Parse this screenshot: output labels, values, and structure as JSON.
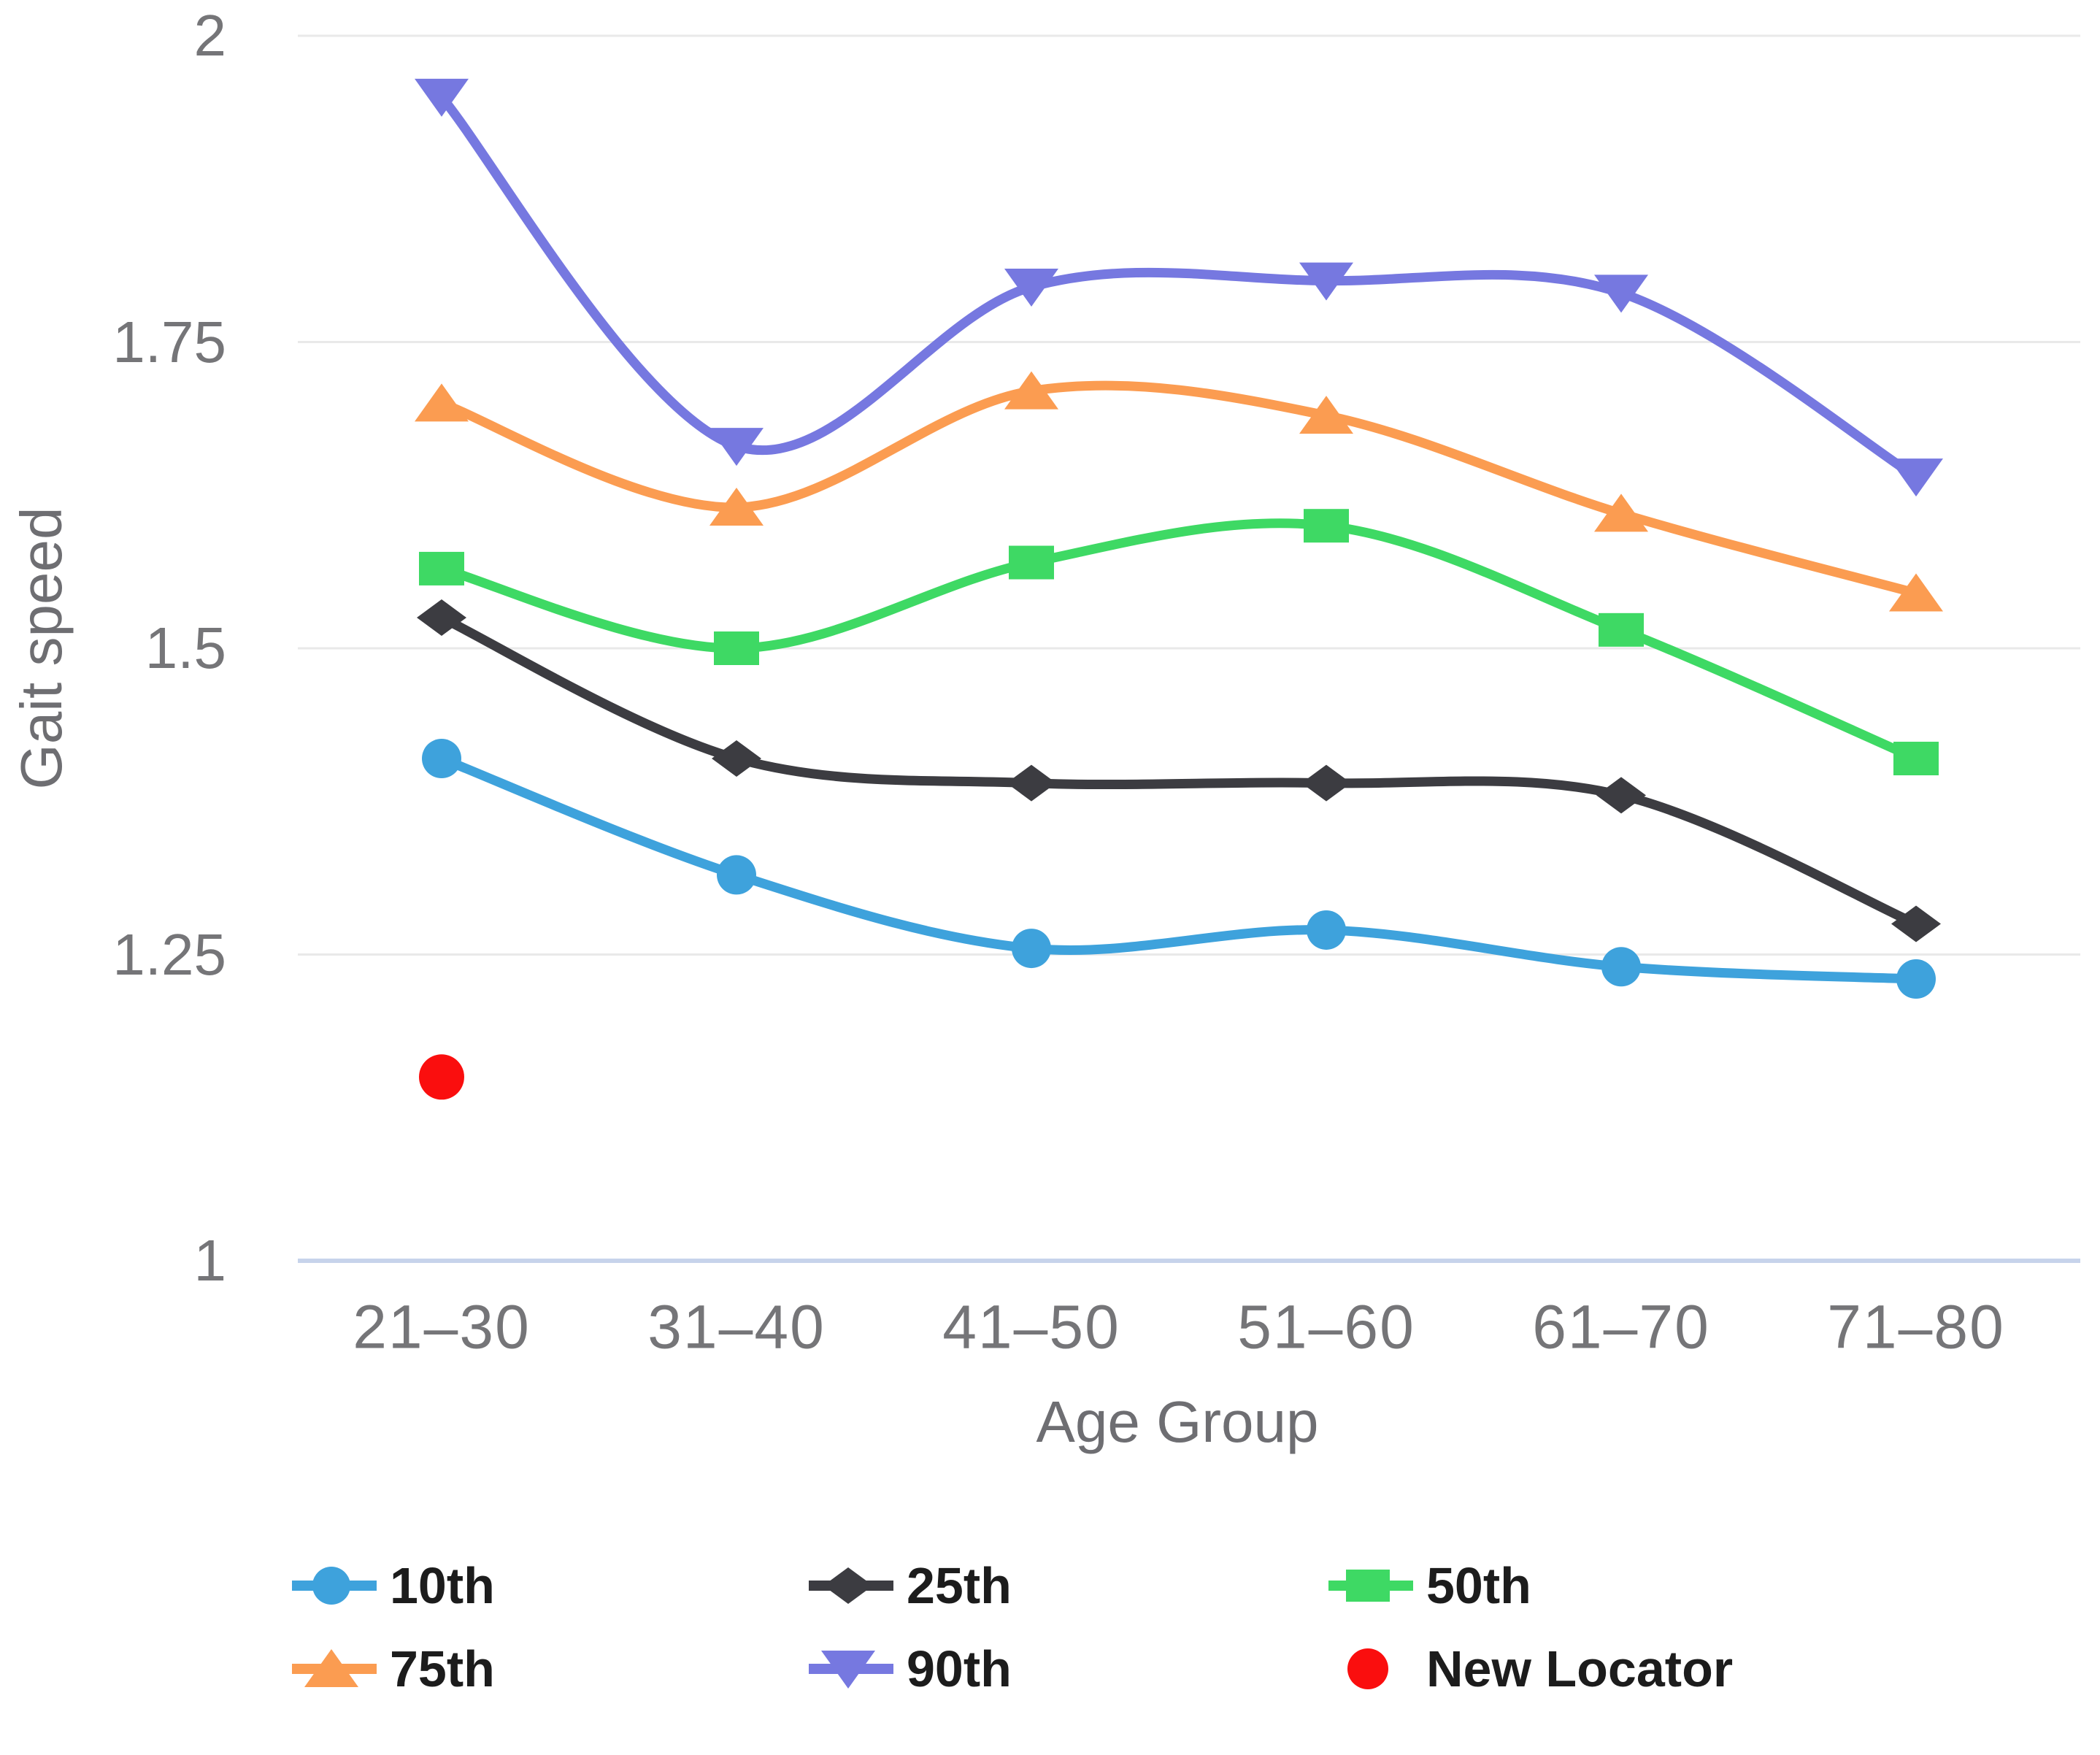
{
  "chart_data": {
    "type": "line",
    "smoothed": true,
    "xlabel": "Age Group",
    "ylabel": "Gait speed",
    "categories": [
      "21–30",
      "31–40",
      "41–50",
      "51–60",
      "61–70",
      "71–80"
    ],
    "yticks": [
      "2",
      "1.75",
      "1.5",
      "1.25",
      "1"
    ],
    "ytick_values": [
      2,
      1.75,
      1.5,
      1.25,
      1
    ],
    "ylim": [
      1,
      2
    ],
    "grid": "horizontal",
    "legend_position": "bottom",
    "series": [
      {
        "name": "10th",
        "marker": "circle",
        "color": "#3EA2DC",
        "values": [
          1.41,
          1.315,
          1.255,
          1.27,
          1.24,
          1.23
        ]
      },
      {
        "name": "25th",
        "marker": "diamond",
        "color": "#3C3C41",
        "values": [
          1.525,
          1.41,
          1.39,
          1.39,
          1.38,
          1.275
        ]
      },
      {
        "name": "50th",
        "marker": "square",
        "color": "#3ED964",
        "values": [
          1.565,
          1.5,
          1.57,
          1.6,
          1.515,
          1.41
        ]
      },
      {
        "name": "75th",
        "marker": "triangle-up",
        "color": "#FB9C51",
        "values": [
          1.7,
          1.615,
          1.71,
          1.69,
          1.61,
          1.545
        ]
      },
      {
        "name": "90th",
        "marker": "triangle-down",
        "color": "#7678E0",
        "values": [
          1.95,
          1.665,
          1.795,
          1.8,
          1.79,
          1.64
        ]
      }
    ],
    "locator": {
      "name": "New Locator",
      "marker": "dot",
      "color": "#FA0E0E",
      "category": "21–30",
      "value": 1.15
    }
  },
  "colors": {
    "background": "#FFFFFF",
    "gridline": "#E9E9E9",
    "axis_line": "#C7D3EB",
    "tick_text": "#757578",
    "axis_title_text": "#6E6E72",
    "legend_text": "#1C1C1C"
  }
}
